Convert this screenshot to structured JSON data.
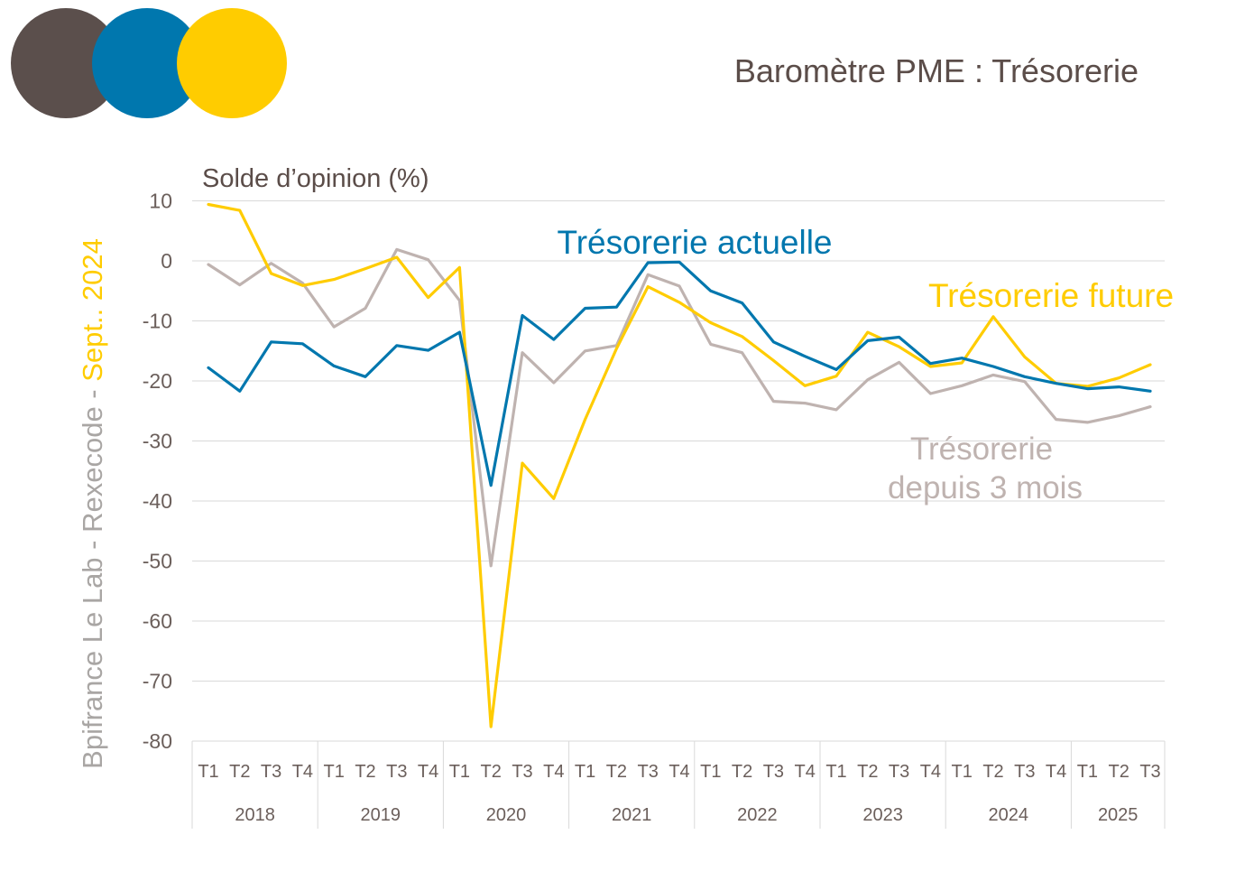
{
  "header": {
    "title": "Baromètre PME : Trésorerie",
    "source_gray": "Bpifrance Le Lab - Rexecode - ",
    "source_yellow": "Sept.. 2024"
  },
  "colors": {
    "brown": "#5b4f4c",
    "blue": "#0077ae",
    "yellow": "#ffcc00",
    "gray": "#bfb3b0",
    "gridline": "#d9d9d9",
    "text_dark": "#5b4d49",
    "tick_text": "#6b5f5b"
  },
  "chart_data": {
    "type": "line",
    "ylabel": "Solde d’opinion (%)",
    "ylim": [
      -80,
      10
    ],
    "yticks": [
      10,
      0,
      -10,
      -20,
      -30,
      -40,
      -50,
      -60,
      -70,
      -80
    ],
    "grid": true,
    "categories": [
      "T1",
      "T2",
      "T3",
      "T4",
      "T1",
      "T2",
      "T3",
      "T4",
      "T1",
      "T2",
      "T3",
      "T4",
      "T1",
      "T2",
      "T3",
      "T4",
      "T1",
      "T2",
      "T3",
      "T4",
      "T1",
      "T2",
      "T3",
      "T4",
      "T1",
      "T2",
      "T3",
      "T4",
      "T1",
      "T2",
      "T3"
    ],
    "years": [
      {
        "label": "2018",
        "count": 4
      },
      {
        "label": "2019",
        "count": 4
      },
      {
        "label": "2020",
        "count": 4
      },
      {
        "label": "2021",
        "count": 4
      },
      {
        "label": "2022",
        "count": 4
      },
      {
        "label": "2023",
        "count": 4
      },
      {
        "label": "2024",
        "count": 4
      },
      {
        "label": "2025",
        "count": 3
      }
    ],
    "series": [
      {
        "key": "depuis",
        "name": "Trésorerie depuis 3 mois",
        "color": "#bfb3b0",
        "values": [
          -0.6,
          -4.0,
          -0.4,
          -3.7,
          -11.0,
          -7.9,
          1.9,
          0.2,
          -6.6,
          -50.8,
          -15.3,
          -20.3,
          -15.0,
          -14.1,
          -2.3,
          -4.2,
          -13.9,
          -15.3,
          -23.4,
          -23.7,
          -24.8,
          -19.8,
          -16.9,
          -22.1,
          -20.8,
          -19.0,
          -20.1,
          -26.4,
          -26.9,
          -25.8,
          -24.3
        ]
      },
      {
        "key": "future",
        "name": "Trésorerie future",
        "color": "#ffcc00",
        "values": [
          9.4,
          8.4,
          -2.1,
          -4.1,
          -3.1,
          -1.3,
          0.6,
          -6.1,
          -1.1,
          -77.6,
          -33.7,
          -39.6,
          -26.4,
          -14.6,
          -4.3,
          -6.9,
          -10.3,
          -12.6,
          -16.6,
          -20.8,
          -19.2,
          -11.9,
          -14.3,
          -17.6,
          -17.0,
          -9.3,
          -16.0,
          -20.4,
          -20.9,
          -19.5,
          -17.3
        ]
      },
      {
        "key": "actuelle",
        "name": "Trésorerie actuelle",
        "color": "#0077ae",
        "values": [
          -17.8,
          -21.7,
          -13.5,
          -13.8,
          -17.5,
          -19.3,
          -14.1,
          -14.9,
          -11.9,
          -37.4,
          -9.1,
          -13.1,
          -7.9,
          -7.7,
          -0.3,
          -0.2,
          -5.0,
          -7.0,
          -13.5,
          -15.9,
          -18.1,
          -13.3,
          -12.7,
          -17.1,
          -16.2,
          -17.6,
          -19.3,
          -20.4,
          -21.3,
          -21.0,
          -21.7
        ]
      }
    ],
    "annotations": {
      "actuelle": "Trésorerie actuelle",
      "future": "Trésorerie future",
      "depuis_line1": "Trésorerie",
      "depuis_line2": "depuis 3 mois"
    }
  }
}
